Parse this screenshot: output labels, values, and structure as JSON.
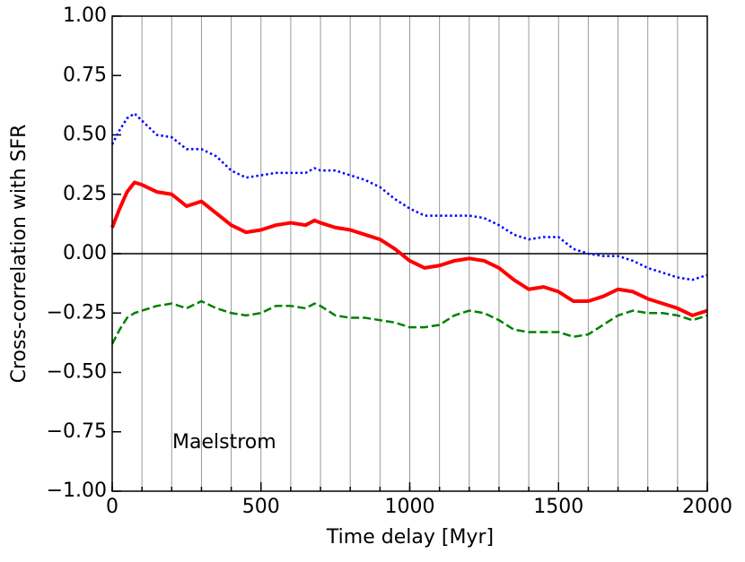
{
  "chart_data": {
    "type": "line",
    "xlabel": "Time delay [Myr]",
    "ylabel": "Cross-correlation with SFR",
    "annotation": "Maelstrom",
    "x": [
      0,
      25,
      50,
      75,
      100,
      150,
      200,
      250,
      300,
      350,
      400,
      450,
      500,
      550,
      600,
      650,
      680,
      700,
      750,
      800,
      850,
      900,
      950,
      1000,
      1050,
      1100,
      1150,
      1200,
      1250,
      1300,
      1350,
      1400,
      1450,
      1500,
      1550,
      1600,
      1650,
      1700,
      1750,
      1800,
      1850,
      1900,
      1950,
      2000
    ],
    "series": [
      {
        "color": "#0000ff",
        "style": "dotted",
        "width": 2.5,
        "values": [
          0.46,
          0.52,
          0.57,
          0.59,
          0.56,
          0.5,
          0.49,
          0.44,
          0.44,
          0.41,
          0.35,
          0.32,
          0.33,
          0.34,
          0.34,
          0.34,
          0.36,
          0.35,
          0.35,
          0.33,
          0.31,
          0.28,
          0.23,
          0.19,
          0.16,
          0.16,
          0.16,
          0.16,
          0.15,
          0.12,
          0.08,
          0.06,
          0.07,
          0.07,
          0.02,
          0.0,
          -0.01,
          -0.01,
          -0.03,
          -0.06,
          -0.08,
          -0.1,
          -0.11,
          -0.09
        ]
      },
      {
        "color": "#ff0000",
        "style": "solid",
        "width": 4,
        "values": [
          0.11,
          0.19,
          0.26,
          0.3,
          0.29,
          0.26,
          0.25,
          0.2,
          0.22,
          0.17,
          0.12,
          0.09,
          0.1,
          0.12,
          0.13,
          0.12,
          0.14,
          0.13,
          0.11,
          0.1,
          0.08,
          0.06,
          0.02,
          -0.03,
          -0.06,
          -0.05,
          -0.03,
          -0.02,
          -0.03,
          -0.06,
          -0.11,
          -0.15,
          -0.14,
          -0.16,
          -0.2,
          -0.2,
          -0.18,
          -0.15,
          -0.16,
          -0.19,
          -0.21,
          -0.23,
          -0.26,
          -0.24
        ]
      },
      {
        "color": "#008000",
        "style": "dashed",
        "width": 2.5,
        "values": [
          -0.38,
          -0.32,
          -0.27,
          -0.25,
          -0.24,
          -0.22,
          -0.21,
          -0.23,
          -0.2,
          -0.23,
          -0.25,
          -0.26,
          -0.25,
          -0.22,
          -0.22,
          -0.23,
          -0.21,
          -0.22,
          -0.26,
          -0.27,
          -0.27,
          -0.28,
          -0.29,
          -0.31,
          -0.31,
          -0.3,
          -0.26,
          -0.24,
          -0.25,
          -0.28,
          -0.32,
          -0.33,
          -0.33,
          -0.33,
          -0.35,
          -0.34,
          -0.3,
          -0.26,
          -0.24,
          -0.25,
          -0.25,
          -0.26,
          -0.28,
          -0.26
        ]
      }
    ],
    "xlim": [
      0,
      2000
    ],
    "ylim": [
      -1,
      1
    ],
    "xticks": [
      0,
      500,
      1000,
      1500,
      2000
    ],
    "xminorticks": [
      0,
      100,
      200,
      300,
      400,
      500,
      600,
      700,
      800,
      900,
      1000,
      1100,
      1200,
      1300,
      1400,
      1500,
      1600,
      1700,
      1800,
      1900,
      2000
    ],
    "yticks": [
      {
        "value": -1,
        "label": "−1.00"
      },
      {
        "value": -0.75,
        "label": "−0.75"
      },
      {
        "value": -0.5,
        "label": "−0.50"
      },
      {
        "value": -0.25,
        "label": "−0.25"
      },
      {
        "value": 0,
        "label": "0.00"
      },
      {
        "value": 0.25,
        "label": "0.25"
      },
      {
        "value": 0.5,
        "label": "0.50"
      },
      {
        "value": 0.75,
        "label": "0.75"
      },
      {
        "value": 1,
        "label": "1.00"
      }
    ],
    "hline": 0,
    "xgrid": true
  }
}
